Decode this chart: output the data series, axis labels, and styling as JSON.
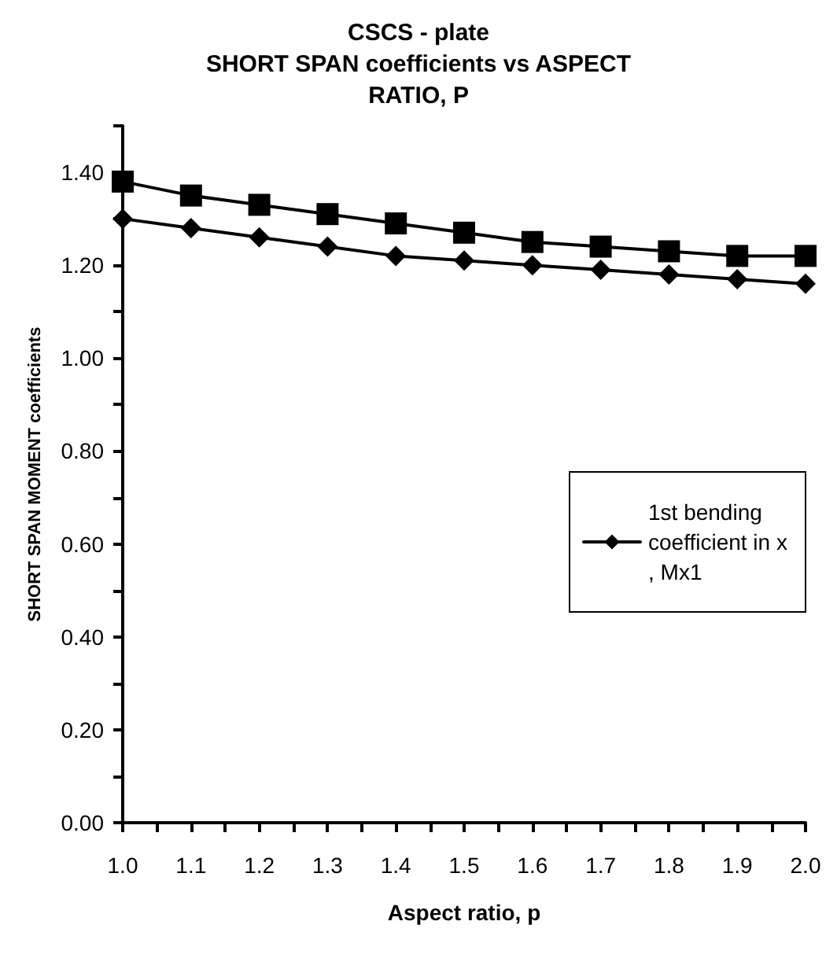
{
  "chart_data": {
    "type": "line",
    "title": "CSCS - plate\nSHORT SPAN coefficients vs ASPECT\nRATIO, P",
    "xlabel": "Aspect ratio, p",
    "ylabel": "SHORT SPAN MOMENT coefficients",
    "x": [
      1.0,
      1.1,
      1.2,
      1.3,
      1.4,
      1.5,
      1.6,
      1.7,
      1.8,
      1.9,
      2.0
    ],
    "series": [
      {
        "name": "1st bending coefficient in x, Mx1",
        "color": "#000000",
        "marker": "diamond",
        "values": [
          1.3,
          1.28,
          1.26,
          1.24,
          1.22,
          1.21,
          1.2,
          1.19,
          1.18,
          1.17,
          1.16
        ]
      },
      {
        "color": "#000000",
        "marker": "square",
        "values": [
          1.38,
          1.35,
          1.33,
          1.31,
          1.29,
          1.27,
          1.25,
          1.24,
          1.23,
          1.22,
          1.22
        ]
      }
    ],
    "xlim": [
      1.0,
      2.0
    ],
    "xticks": [
      {
        "value": 1.0,
        "label": "1.0"
      },
      {
        "value": 1.05,
        "label": null
      },
      {
        "value": 1.1,
        "label": "1.1"
      },
      {
        "value": 1.15,
        "label": null
      },
      {
        "value": 1.2,
        "label": "1.2"
      },
      {
        "value": 1.25,
        "label": null
      },
      {
        "value": 1.3,
        "label": "1.3"
      },
      {
        "value": 1.35,
        "label": null
      },
      {
        "value": 1.4,
        "label": "1.4"
      },
      {
        "value": 1.45,
        "label": null
      },
      {
        "value": 1.5,
        "label": "1.5"
      },
      {
        "value": 1.55,
        "label": null
      },
      {
        "value": 1.6,
        "label": "1.6"
      },
      {
        "value": 1.65,
        "label": null
      },
      {
        "value": 1.7,
        "label": "1.7"
      },
      {
        "value": 1.75,
        "label": null
      },
      {
        "value": 1.8,
        "label": "1.8"
      },
      {
        "value": 1.85,
        "label": null
      },
      {
        "value": 1.9,
        "label": "1.9"
      },
      {
        "value": 1.95,
        "label": null
      },
      {
        "value": 2.0,
        "label": "2.0"
      }
    ],
    "ylim": [
      0,
      1.5
    ],
    "yticks": [
      {
        "value": 0,
        "label": "0.00"
      },
      {
        "value": 0.1,
        "label": null
      },
      {
        "value": 0.2,
        "label": "0.20"
      },
      {
        "value": 0.3,
        "label": null
      },
      {
        "value": 0.4,
        "label": "0.40"
      },
      {
        "value": 0.5,
        "label": null
      },
      {
        "value": 0.6,
        "label": "0.60"
      },
      {
        "value": 0.7,
        "label": null
      },
      {
        "value": 0.8,
        "label": "0.80"
      },
      {
        "value": 0.9,
        "label": null
      },
      {
        "value": 1.0,
        "label": "1.00"
      },
      {
        "value": 1.1,
        "label": null
      },
      {
        "value": 1.2,
        "label": "1.20"
      },
      {
        "value": 1.3,
        "label": null
      },
      {
        "value": 1.4,
        "label": "1.40"
      },
      {
        "value": 1.5,
        "label": null
      }
    ],
    "grid": false,
    "legend": "right",
    "line_style": "solid"
  }
}
